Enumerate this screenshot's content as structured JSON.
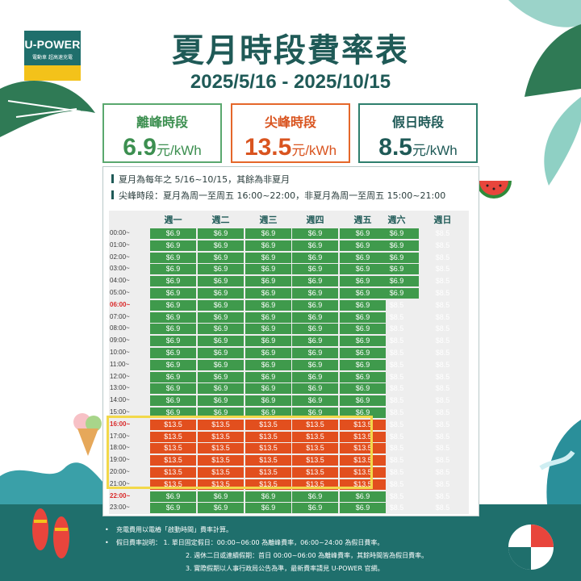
{
  "logo": {
    "brand": "U-POWER",
    "tagline": "電動車 超高速充電"
  },
  "title": "夏月時段費率表",
  "date_range": "2025/5/16 - 2025/10/15",
  "rates": [
    {
      "label": "離峰時段",
      "value": "6.9",
      "unit": "元/kWh",
      "color": "#3c8f50"
    },
    {
      "label": "尖峰時段",
      "value": "13.5",
      "unit": "元/kWh",
      "color": "#d9541f"
    },
    {
      "label": "假日時段",
      "value": "8.5",
      "unit": "元/kWh",
      "color": "#1f5a57"
    }
  ],
  "notes": [
    "夏月為每年之 5/16~10/15，其餘為非夏月",
    "尖峰時段：夏月為周一至周五 16:00~22:00，非夏月為周一至周五 15:00~21:00"
  ],
  "days": [
    "週一",
    "週二",
    "週三",
    "週四",
    "週五",
    "週六",
    "週日"
  ],
  "times": [
    "00:00~",
    "01:00~",
    "02:00~",
    "03:00~",
    "04:00~",
    "05:00~",
    "06:00~",
    "07:00~",
    "08:00~",
    "09:00~",
    "10:00~",
    "11:00~",
    "12:00~",
    "13:00~",
    "14:00~",
    "15:00~",
    "16:00~",
    "17:00~",
    "18:00~",
    "19:00~",
    "20:00~",
    "21:00~",
    "22:00~",
    "23:00~"
  ],
  "highlight_times": [
    "06:00~",
    "16:00~",
    "22:00~"
  ],
  "price_labels": {
    "off": "$6.9",
    "peak": "$13.5",
    "holiday": "$8.5"
  },
  "colors": {
    "off": "#3f9a4c",
    "peak": "#e24f1e",
    "holiday": "#b9d9a0",
    "brand": "#1f6f6c",
    "accent": "#f3c21a"
  },
  "footnotes": [
    "充電費用以電樁「啟動時間」費率計算。",
    "假日費率說明：  1. 單日固定假日：00:00~06:00 為離峰費率，06:00~24:00 為假日費率。",
    "2. 週休二日或連續假期：首日 00:00~06:00 為離峰費率，其餘時間皆為假日費率。",
    "3. 實際假期以人事行政局公告為準，最新費率請見 U-POWER 官網。"
  ]
}
